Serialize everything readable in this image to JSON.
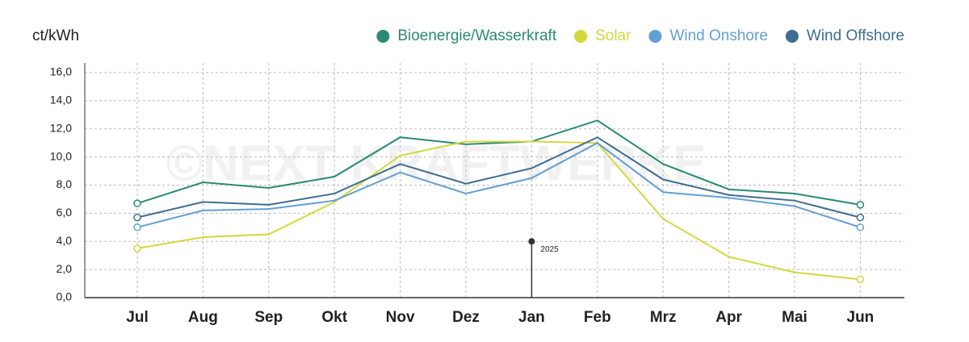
{
  "chart_data": {
    "type": "line",
    "y_axis_label": "ct/kWh",
    "watermark": "©NEXT KRAFTWERKE",
    "categories": [
      "Jul",
      "Aug",
      "Sep",
      "Okt",
      "Nov",
      "Dez",
      "Jan",
      "Feb",
      "Mrz",
      "Apr",
      "Mai",
      "Jun"
    ],
    "series": [
      {
        "name": "Bioenergie/Wasserkraft",
        "color": "#2a8a72",
        "values": [
          6.7,
          8.2,
          7.8,
          8.6,
          11.4,
          10.9,
          11.1,
          12.6,
          9.5,
          7.7,
          7.4,
          6.6
        ]
      },
      {
        "name": "Solar",
        "color": "#d3d83c",
        "values": [
          3.5,
          4.3,
          4.5,
          6.8,
          10.1,
          11.1,
          11.1,
          11.0,
          5.6,
          2.9,
          1.8,
          1.3
        ]
      },
      {
        "name": "Wind Onshore",
        "color": "#629fd3",
        "values": [
          5.0,
          6.2,
          6.3,
          6.9,
          8.9,
          7.4,
          8.5,
          11.0,
          7.5,
          7.1,
          6.5,
          5.0
        ]
      },
      {
        "name": "Wind Offshore",
        "color": "#3e6d8e",
        "values": [
          5.7,
          6.8,
          6.6,
          7.4,
          9.5,
          8.1,
          9.2,
          11.4,
          8.4,
          7.3,
          6.9,
          5.7
        ]
      }
    ],
    "annotation": {
      "label": "2025",
      "category": "Jan",
      "value": 4.0
    },
    "ylim": [
      0,
      16
    ],
    "yticks": [
      {
        "value": 0,
        "label": "0,0"
      },
      {
        "value": 2,
        "label": "2,0"
      },
      {
        "value": 4,
        "label": "4,0"
      },
      {
        "value": 6,
        "label": "6,0"
      },
      {
        "value": 8,
        "label": "8,0"
      },
      {
        "value": 10,
        "label": "10,0"
      },
      {
        "value": 12,
        "label": "12,0"
      },
      {
        "value": 14,
        "label": "14,0"
      },
      {
        "value": 16,
        "label": "16,0"
      }
    ],
    "grid": true,
    "legend": "top-right"
  }
}
